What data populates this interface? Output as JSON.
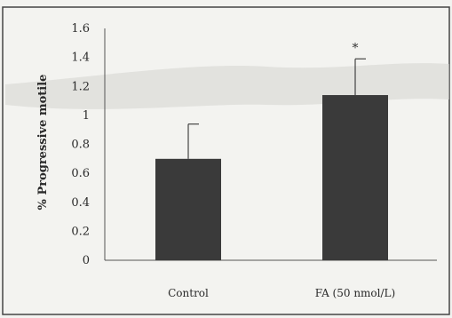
{
  "chart_data": {
    "type": "bar",
    "title": "",
    "xlabel": "",
    "ylabel": "% Progressive motile",
    "categories": [
      "Control",
      "FA (50 nmol/L)"
    ],
    "values": [
      0.7,
      1.14
    ],
    "error_upper": [
      0.24,
      0.25
    ],
    "annotations": [
      {
        "category": "FA (50 nmol/L)",
        "text": "*"
      }
    ],
    "ylim": [
      0,
      1.6
    ],
    "yticks": [
      "0",
      "0.2",
      "0.4",
      "0.6",
      "0.8",
      "1",
      "1.2",
      "1.4",
      "1.6"
    ],
    "grid": false,
    "legend": "none",
    "bar_color": "#3a3a3a",
    "axis_color": "#555555",
    "frame_color": "#444444"
  }
}
